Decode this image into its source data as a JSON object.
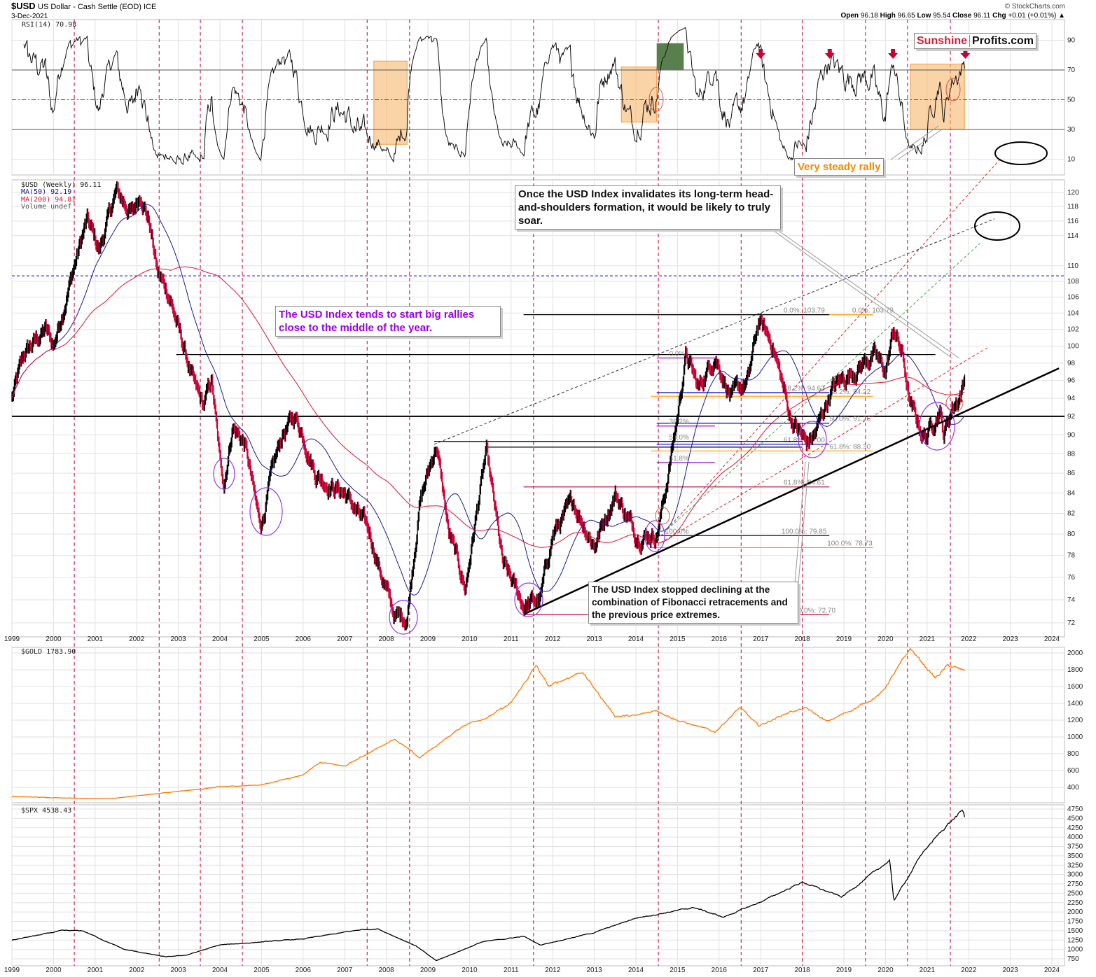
{
  "header": {
    "symbol": "$USD",
    "name": "US Dollar - Cash Settle (EOD) ICE",
    "date": "3-Dec-2021",
    "credit": "© StockCharts.com",
    "open_label": "Open",
    "open": "96.18",
    "high_label": "High",
    "high": "96.65",
    "low_label": "Low",
    "low": "95.54",
    "close_label": "Close",
    "close": "96.11",
    "chg_label": "Chg",
    "chg": "+0.01 (+0.01%) ▲"
  },
  "logo": {
    "part1": "Sunshine",
    "part2": "Profits.com"
  },
  "annotations": {
    "steady": "Very steady rally",
    "hs": "Once the USD Index invalidates its long-term head-and-shoulders formation, it would be likely to truly soar.",
    "middle_year": "The USD Index tends to start big rallies close to the middle of the year.",
    "fib": "The USD Index stopped declining at the combination of Fibonacci retracements and the previous price extremes."
  },
  "colors": {
    "up": "#000000",
    "down": "#cc0033",
    "ma50": "#1a1a99",
    "ma200": "#dd1133",
    "gold": "#ff7700",
    "spx": "#000000",
    "marker": "#cc0033",
    "rsi_box": "#f7b56a",
    "rsi_over": "#5a7f4f"
  },
  "chart_data": [
    {
      "type": "line",
      "title": "RSI(14) 70.98",
      "legend": "RSI(14) 70.98",
      "yticks": [
        90,
        70,
        50,
        30,
        10
      ],
      "ylim": [
        0,
        100
      ],
      "levels": [
        70,
        50,
        30
      ],
      "highlight_boxes": [
        [
          2007.7,
          2008.5,
          20,
          76
        ],
        [
          2013.65,
          2014.5,
          35,
          72
        ],
        [
          2020.6,
          2021.9,
          30,
          74
        ]
      ],
      "overbought_fill": [
        2014.5,
        2015.15
      ],
      "sell_arrows": [
        2017.0,
        2018.66,
        2020.18,
        2021.92
      ]
    },
    {
      "type": "bar",
      "title": "$USD (Weekly) 96.11",
      "legend": [
        "$USD (Weekly) 96.11",
        "MA(50) 92.19",
        "MA(200) 94.81",
        "Volume undef"
      ],
      "scale": "log",
      "ylim": [
        71,
        124
      ],
      "yticks": [
        72,
        74,
        76,
        78,
        80,
        82,
        84,
        86,
        88,
        90,
        92,
        94,
        96,
        98,
        100,
        102,
        104,
        106,
        108,
        110,
        114,
        116,
        118,
        120
      ],
      "xticks": [
        "1999",
        "2000",
        "2001",
        "2002",
        "2003",
        "2004",
        "2005",
        "2006",
        "2007",
        "2008",
        "2009",
        "2010",
        "2011",
        "2012",
        "2013",
        "2014",
        "2015",
        "2016",
        "2017",
        "2018",
        "2019",
        "2020",
        "2021",
        "2022",
        "2023",
        "2024"
      ],
      "anchors": [
        [
          1999.0,
          94
        ],
        [
          1999.3,
          99
        ],
        [
          1999.8,
          102
        ],
        [
          2000.0,
          100
        ],
        [
          2000.4,
          108
        ],
        [
          2000.8,
          116
        ],
        [
          2001.1,
          112
        ],
        [
          2001.5,
          120
        ],
        [
          2001.9,
          117
        ],
        [
          2002.1,
          120
        ],
        [
          2002.3,
          116
        ],
        [
          2002.5,
          109
        ],
        [
          2002.8,
          106
        ],
        [
          2003.0,
          102
        ],
        [
          2003.4,
          95
        ],
        [
          2003.6,
          93
        ],
        [
          2003.8,
          96
        ],
        [
          2004.0,
          87
        ],
        [
          2004.1,
          85
        ],
        [
          2004.3,
          91
        ],
        [
          2004.6,
          89
        ],
        [
          2004.9,
          82
        ],
        [
          2005.0,
          81
        ],
        [
          2005.2,
          85
        ],
        [
          2005.5,
          90
        ],
        [
          2005.8,
          92
        ],
        [
          2006.0,
          90
        ],
        [
          2006.3,
          86
        ],
        [
          2006.6,
          85
        ],
        [
          2007.0,
          84
        ],
        [
          2007.3,
          82
        ],
        [
          2007.6,
          80
        ],
        [
          2007.9,
          76
        ],
        [
          2008.2,
          72.5
        ],
        [
          2008.5,
          72.5
        ],
        [
          2008.8,
          83
        ],
        [
          2009.2,
          89
        ],
        [
          2009.5,
          80
        ],
        [
          2009.9,
          75
        ],
        [
          2010.4,
          88
        ],
        [
          2010.8,
          77
        ],
        [
          2011.3,
          73.5
        ],
        [
          2011.7,
          74
        ],
        [
          2012.0,
          80
        ],
        [
          2012.5,
          83
        ],
        [
          2013.0,
          79
        ],
        [
          2013.5,
          84
        ],
        [
          2014.0,
          80
        ],
        [
          2014.5,
          80
        ],
        [
          2014.7,
          84
        ],
        [
          2015.0,
          92
        ],
        [
          2015.2,
          99
        ],
        [
          2015.5,
          95
        ],
        [
          2015.9,
          99
        ],
        [
          2016.3,
          94
        ],
        [
          2016.7,
          96
        ],
        [
          2016.95,
          103
        ],
        [
          2017.3,
          100
        ],
        [
          2017.7,
          92
        ],
        [
          2018.1,
          89
        ],
        [
          2018.3,
          90
        ],
        [
          2018.7,
          95
        ],
        [
          2019.2,
          97
        ],
        [
          2019.7,
          99
        ],
        [
          2020.0,
          97
        ],
        [
          2020.2,
          102
        ],
        [
          2020.4,
          99
        ],
        [
          2020.6,
          93
        ],
        [
          2020.9,
          90
        ],
        [
          2021.0,
          90
        ],
        [
          2021.3,
          93
        ],
        [
          2021.4,
          90
        ],
        [
          2021.6,
          93
        ],
        [
          2021.75,
          94
        ],
        [
          2021.92,
          96.11
        ]
      ],
      "horizontal_levels": [
        {
          "value": 92,
          "color": "#000000",
          "style": "solid-thick"
        },
        {
          "value": 108.7,
          "color": "#0000ee",
          "style": "dashed"
        }
      ],
      "trendlines": [
        {
          "from": [
            2011.34,
            72.8
          ],
          "to": [
            2024.17,
            97.4
          ],
          "color": "#000000",
          "style": "solid-thick"
        },
        {
          "from": [
            2014.6,
            79.8
          ],
          "to": [
            2022.78,
            125
          ],
          "color": "#dd2222",
          "style": "dashed"
        },
        {
          "from": [
            2014.6,
            79.2
          ],
          "to": [
            2022.45,
            99.8
          ],
          "color": "#dd2222",
          "style": "dashed"
        },
        {
          "from": [
            2009.15,
            89
          ],
          "to": [
            2022.62,
            116.3
          ],
          "color": "#333333",
          "style": "dashed"
        },
        {
          "from": [
            2014.5,
            79.5
          ],
          "to": [
            2022.28,
            113
          ],
          "color": "#44aa44",
          "style": "dashed"
        }
      ],
      "fib_levels": [
        {
          "label": "0.0%: 103.79",
          "value": 103.79,
          "range": [
            2014.36,
            2019.7
          ],
          "color": "#ff9900",
          "label_at": 2019.2
        },
        {
          "label": "0.0%: 103.79",
          "value": 103.8,
          "range": [
            2011.3,
            2018.65
          ],
          "color": "#000000",
          "label_at": 2017.55
        },
        {
          "label": "",
          "value": 99.0,
          "range": [
            2002.95,
            2021.2
          ],
          "color": "#000000",
          "label_at": 2017
        },
        {
          "label": "0.0%",
          "value": 98.6,
          "range": [
            2014.5,
            2015.9
          ],
          "color": "#9900cc",
          "label_at": 2014.8
        },
        {
          "label": "38.2%: 94.63",
          "value": 94.63,
          "range": [
            2014.5,
            2018.65
          ],
          "color": "#0000cc",
          "label_at": 2017.55
        },
        {
          "label": "38.2%: 94.22",
          "value": 94.22,
          "range": [
            2014.36,
            2019.7
          ],
          "color": "#ff9900",
          "label_at": 2018.65
        },
        {
          "label": "50.0%: 91.26",
          "value": 91.26,
          "range": [
            2014.5,
            2018.65
          ],
          "color": "#0000cc",
          "label_at": 2018.65
        },
        {
          "label": "38.2%",
          "value": 90.95,
          "range": [
            2014.5,
            2015.9
          ],
          "color": "#9900cc",
          "label_at": 2014.8
        },
        {
          "label": "61.8%: 89.00",
          "value": 89.0,
          "range": [
            2014.5,
            2018.65
          ],
          "color": "#0000cc",
          "label_at": 2017.55
        },
        {
          "label": "50.0%",
          "value": 89.3,
          "range": [
            2009.15,
            2018.0
          ],
          "color": "#000000",
          "label_at": 2014.8
        },
        {
          "label": "61.8%: 88.30",
          "value": 88.3,
          "range": [
            2014.36,
            2019.7
          ],
          "color": "#ff9900",
          "label_at": 2018.65
        },
        {
          "label": "",
          "value": 88.7,
          "range": [
            2010.4,
            2018.0
          ],
          "color": "#000000",
          "label_at": 2014.8
        },
        {
          "label": "61.8%",
          "value": 87.1,
          "range": [
            2014.5,
            2015.9
          ],
          "color": "#9900cc",
          "label_at": 2014.8
        },
        {
          "label": "61.8%: 84.61",
          "value": 84.61,
          "range": [
            2011.3,
            2018.65
          ],
          "color": "#cc1144",
          "label_at": 2017.55
        },
        {
          "label": "100.0%",
          "value": 79.85,
          "range": [
            2014.5,
            2015.9
          ],
          "color": "#0000cc",
          "label_at": 2014.7
        },
        {
          "label": "100.0%: 79.85",
          "value": 79.85,
          "range": [
            2015.9,
            2018.65
          ],
          "color": "#0000cc",
          "label_at": 2017.5
        },
        {
          "label": "100.0%: 78.73",
          "value": 78.73,
          "range": [
            2014.36,
            2019.7
          ],
          "color": "#ff9900",
          "label_at": 2018.6
        },
        {
          "label": "0.0%: 72.70",
          "value": 72.7,
          "range": [
            2011.3,
            2018.65
          ],
          "color": "#cc1144",
          "label_at": 2017.9
        }
      ],
      "marker_years": [
        2000.5,
        2002.54,
        2003.53,
        2004.54,
        2007.54,
        2008.56,
        2011.54,
        2014.54,
        2016.53,
        2018.0,
        2019.52,
        2020.53,
        2021.56
      ]
    },
    {
      "type": "line",
      "title": "$GOLD 1783.90",
      "legend": "$GOLD 1783.90",
      "ylim": [
        300,
        2100
      ],
      "yticks": [
        2000,
        1800,
        1600,
        1400,
        1200,
        1000,
        800,
        600,
        400
      ],
      "anchors": [
        [
          1999.0,
          290
        ],
        [
          2001.3,
          262
        ],
        [
          2002.0,
          300
        ],
        [
          2003.0,
          350
        ],
        [
          2004.0,
          405
        ],
        [
          2005.0,
          430
        ],
        [
          2006.0,
          550
        ],
        [
          2006.4,
          700
        ],
        [
          2007.0,
          650
        ],
        [
          2008.2,
          980
        ],
        [
          2008.8,
          750
        ],
        [
          2009.9,
          1150
        ],
        [
          2010.5,
          1250
        ],
        [
          2011.0,
          1400
        ],
        [
          2011.6,
          1850
        ],
        [
          2011.9,
          1600
        ],
        [
          2012.7,
          1780
        ],
        [
          2013.5,
          1250
        ],
        [
          2014.0,
          1250
        ],
        [
          2014.5,
          1320
        ],
        [
          2015.0,
          1200
        ],
        [
          2015.9,
          1060
        ],
        [
          2016.5,
          1350
        ],
        [
          2016.95,
          1130
        ],
        [
          2017.7,
          1300
        ],
        [
          2018.1,
          1340
        ],
        [
          2018.6,
          1180
        ],
        [
          2019.5,
          1400
        ],
        [
          2019.9,
          1520
        ],
        [
          2020.6,
          2050
        ],
        [
          2021.2,
          1700
        ],
        [
          2021.5,
          1850
        ],
        [
          2021.92,
          1783.9
        ]
      ]
    },
    {
      "type": "line",
      "title": "$SPX 4538.43",
      "legend": "$SPX 4538.43",
      "ylim": [
        600,
        4850
      ],
      "yticks": [
        4750,
        4500,
        4250,
        4000,
        3750,
        3500,
        3250,
        3000,
        2750,
        2500,
        2250,
        2000,
        1750,
        1500,
        1250,
        1000,
        750
      ],
      "xticks": [
        "1999",
        "2000",
        "2001",
        "2002",
        "2003",
        "2004",
        "2005",
        "2006",
        "2007",
        "2008",
        "2009",
        "2010",
        "2011",
        "2012",
        "2013",
        "2014",
        "2015",
        "2016",
        "2017",
        "2018",
        "2019",
        "2020",
        "2021",
        "2022",
        "2023",
        "2024"
      ],
      "anchors": [
        [
          1999.0,
          1250
        ],
        [
          2000.2,
          1500
        ],
        [
          2000.7,
          1500
        ],
        [
          2001.7,
          1000
        ],
        [
          2002.7,
          800
        ],
        [
          2003.2,
          850
        ],
        [
          2004.0,
          1120
        ],
        [
          2005.0,
          1200
        ],
        [
          2006.0,
          1280
        ],
        [
          2007.4,
          1530
        ],
        [
          2007.8,
          1550
        ],
        [
          2008.7,
          1100
        ],
        [
          2009.2,
          700
        ],
        [
          2010.3,
          1200
        ],
        [
          2011.3,
          1350
        ],
        [
          2011.7,
          1120
        ],
        [
          2013.0,
          1450
        ],
        [
          2014.0,
          1840
        ],
        [
          2015.4,
          2120
        ],
        [
          2016.1,
          1860
        ],
        [
          2017.0,
          2270
        ],
        [
          2018.0,
          2800
        ],
        [
          2018.95,
          2400
        ],
        [
          2020.1,
          3380
        ],
        [
          2020.2,
          2300
        ],
        [
          2020.9,
          3600
        ],
        [
          2021.5,
          4350
        ],
        [
          2021.85,
          4700
        ],
        [
          2021.92,
          4538.43
        ]
      ]
    }
  ]
}
